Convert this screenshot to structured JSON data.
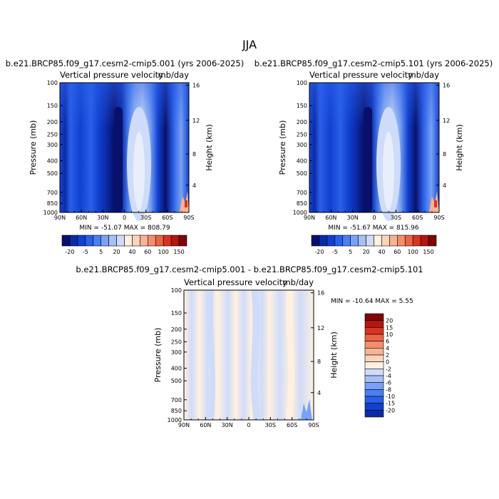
{
  "figure": {
    "supertitle": "JJA"
  },
  "chart_data": [
    {
      "type": "heatmap",
      "title": "b.e21.BRCP85.f09_g17.cesm2-cmip5.001 (yrs 2006-2025)",
      "subtitle_left": "Vertical pressure velocity",
      "subtitle_right": "mb/day",
      "xlabel": "",
      "ylabel": "Pressure (mb)",
      "ylabel_right": "Height (km)",
      "x_ticks": [
        "90N",
        "60N",
        "30N",
        "0",
        "30S",
        "60S",
        "90S"
      ],
      "y_ticks": [
        "100",
        "150",
        "200",
        "250",
        "300",
        "400",
        "500",
        "700",
        "850",
        "1000"
      ],
      "y_ticks_right": [
        "16",
        "12",
        "8",
        "4"
      ],
      "stats": "MIN = -51.07   MAX = 808.79",
      "colorbar_labels": [
        "-20",
        "-5",
        "5",
        "20",
        "40",
        "60",
        "100",
        "150"
      ],
      "colors": [
        "#08106b",
        "#0b2aa8",
        "#1040d0",
        "#2a60e8",
        "#4a7ff0",
        "#7aa2f3",
        "#a5c0f6",
        "#cfdcf9",
        "#fff0e0",
        "#fcd4bc",
        "#f8b294",
        "#f28e6c",
        "#ea6444",
        "#d8351f",
        "#b4150e",
        "#7f0606"
      ]
    },
    {
      "type": "heatmap",
      "title": "b.e21.BRCP85.f09_g17.cesm2-cmip5.101 (yrs 2006-2025)",
      "subtitle_left": "Vertical pressure velocity",
      "subtitle_right": "mb/day",
      "xlabel": "",
      "ylabel": "Pressure (mb)",
      "ylabel_right": "Height (km)",
      "x_ticks": [
        "90N",
        "60N",
        "30N",
        "0",
        "30S",
        "60S",
        "90S"
      ],
      "y_ticks": [
        "100",
        "150",
        "200",
        "250",
        "300",
        "400",
        "500",
        "700",
        "850",
        "1000"
      ],
      "y_ticks_right": [
        "16",
        "12",
        "8",
        "4"
      ],
      "stats": "MIN = -51.67   MAX = 815.96",
      "colorbar_labels": [
        "-20",
        "-5",
        "5",
        "20",
        "40",
        "60",
        "100",
        "150"
      ],
      "colors": [
        "#08106b",
        "#0b2aa8",
        "#1040d0",
        "#2a60e8",
        "#4a7ff0",
        "#7aa2f3",
        "#a5c0f6",
        "#cfdcf9",
        "#fff0e0",
        "#fcd4bc",
        "#f8b294",
        "#f28e6c",
        "#ea6444",
        "#d8351f",
        "#b4150e",
        "#7f0606"
      ]
    },
    {
      "type": "heatmap",
      "title": "b.e21.BRCP85.f09_g17.cesm2-cmip5.001 - b.e21.BRCP85.f09_g17.cesm2-cmip5.101",
      "subtitle_left": "Vertical pressure velocity",
      "subtitle_right": "mb/day",
      "xlabel": "",
      "ylabel": "Pressure (mb)",
      "ylabel_right": "Height (km)",
      "x_ticks": [
        "90N",
        "60N",
        "30N",
        "0",
        "30S",
        "60S",
        "90S"
      ],
      "y_ticks": [
        "100",
        "150",
        "200",
        "250",
        "300",
        "400",
        "500",
        "700",
        "850",
        "1000"
      ],
      "y_ticks_right": [
        "16",
        "12",
        "8",
        "4"
      ],
      "stats": "MIN = -10.64   MAX =    5.55",
      "colorbar_labels": [
        "20",
        "15",
        "10",
        "6",
        "4",
        "2",
        "0",
        "-2",
        "-4",
        "-6",
        "-8",
        "-10",
        "-15",
        "-20"
      ],
      "colors": [
        "#7f0606",
        "#b4150e",
        "#d8351f",
        "#ea6444",
        "#f28e6c",
        "#f8b294",
        "#fcd4bc",
        "#fff0e0",
        "#cfdcf9",
        "#a5c0f6",
        "#7aa2f3",
        "#4a7ff0",
        "#2a60e8",
        "#1040d0",
        "#0b2aa8"
      ]
    }
  ]
}
